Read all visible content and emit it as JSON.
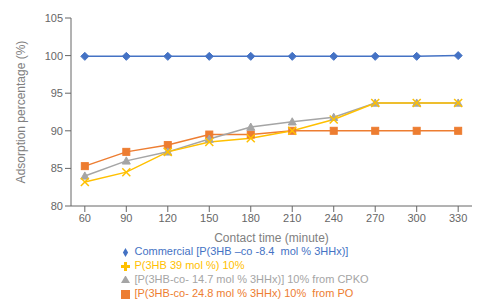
{
  "chart_data": {
    "type": "line",
    "x": [
      60,
      90,
      120,
      150,
      180,
      210,
      240,
      270,
      300,
      330
    ],
    "series": [
      {
        "name": "Commercial [P(3HB –co -8.4  mol % 3HHx)]",
        "color": "#4472C4",
        "marker": "diamond",
        "values": [
          99.9,
          99.9,
          99.9,
          99.9,
          99.9,
          99.9,
          99.9,
          99.9,
          99.9,
          100.0
        ]
      },
      {
        "name": "[P(3HB-co- 24.8 mol % 3HHx) 10%  from PO",
        "color": "#ED7D31",
        "marker": "square",
        "values": [
          85.3,
          87.2,
          88.1,
          89.5,
          89.5,
          90.0,
          90.0,
          90.0,
          90.0,
          90.0
        ]
      },
      {
        "name": "[P(3HB-co- 14.7 mol % 3HHx)] 10% from CPKO",
        "color": "#A5A5A5",
        "marker": "triangle",
        "values": [
          84.0,
          86.0,
          87.2,
          88.9,
          90.5,
          91.2,
          91.8,
          93.7,
          93.7,
          93.7
        ]
      },
      {
        "name": "P(3HB 39 mol %) 10%",
        "color": "#FFC000",
        "marker": "x",
        "values": [
          83.2,
          84.5,
          87.2,
          88.5,
          89.0,
          90.0,
          91.5,
          93.7,
          93.7,
          93.7
        ]
      }
    ],
    "xlabel": "Contact time (minute)",
    "ylabel": "Adsorption percentage (%)",
    "xlim": [
      50,
      340
    ],
    "ylim": [
      80,
      105
    ],
    "xticks": [
      60,
      90,
      120,
      150,
      180,
      210,
      240,
      270,
      300,
      330
    ],
    "yticks": [
      80,
      85,
      90,
      95,
      100,
      105
    ],
    "grid": false,
    "legend": "bottom"
  }
}
